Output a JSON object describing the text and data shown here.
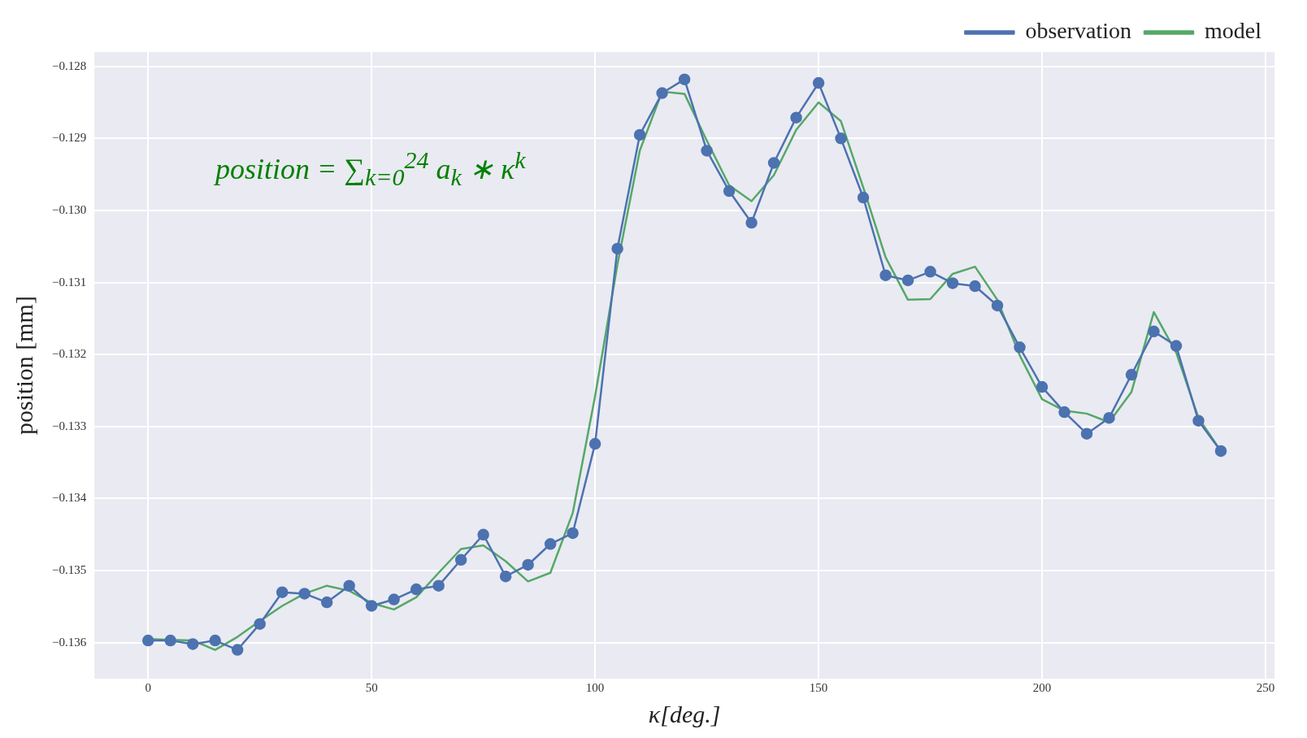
{
  "chart_data": {
    "type": "line",
    "xlabel": "κ[deg.]",
    "ylabel": "position [mm]",
    "annotations": [
      "position = ∑$_{k=0}$$^{24}$ a$_{k}$ ∗ κ$^{k}$"
    ],
    "x": [
      0,
      5,
      10,
      15,
      20,
      25,
      30,
      35,
      40,
      45,
      50,
      55,
      60,
      65,
      70,
      75,
      80,
      85,
      90,
      95,
      100,
      105,
      110,
      115,
      120,
      125,
      130,
      135,
      140,
      145,
      150,
      155,
      160,
      165,
      170,
      175,
      180,
      185,
      190,
      195,
      200,
      205,
      210,
      215,
      220,
      225,
      230,
      235,
      240
    ],
    "series": [
      {
        "name": "observation",
        "color": "#4c72b0",
        "marker": "circle",
        "values": [
          -0.13597,
          -0.13597,
          -0.13602,
          -0.13597,
          -0.1361,
          -0.13574,
          -0.1353,
          -0.13532,
          -0.13544,
          -0.13521,
          -0.13549,
          -0.1354,
          -0.13526,
          -0.13521,
          -0.13485,
          -0.1345,
          -0.13508,
          -0.13492,
          -0.13463,
          -0.13448,
          -0.13324,
          -0.13053,
          -0.12895,
          -0.12837,
          -0.12818,
          -0.12917,
          -0.12973,
          -0.13017,
          -0.12934,
          -0.12871,
          -0.12823,
          -0.129,
          -0.12982,
          -0.1309,
          -0.13097,
          -0.13085,
          -0.13101,
          -0.13105,
          -0.13132,
          -0.1319,
          -0.13245,
          -0.1328,
          -0.1331,
          -0.13288,
          -0.13228,
          -0.13168,
          -0.13188,
          -0.13292,
          -0.13334
        ]
      },
      {
        "name": "model",
        "color": "#55a868",
        "marker": "none",
        "values": [
          -0.13595,
          -0.13596,
          -0.13597,
          -0.1361,
          -0.13592,
          -0.1357,
          -0.13549,
          -0.13532,
          -0.13521,
          -0.13528,
          -0.13545,
          -0.13554,
          -0.13537,
          -0.13503,
          -0.1347,
          -0.13465,
          -0.13487,
          -0.13515,
          -0.13503,
          -0.1342,
          -0.13258,
          -0.13075,
          -0.12917,
          -0.12835,
          -0.12838,
          -0.12903,
          -0.12965,
          -0.12987,
          -0.12951,
          -0.12888,
          -0.1285,
          -0.12876,
          -0.12968,
          -0.13065,
          -0.13124,
          -0.13123,
          -0.13088,
          -0.13078,
          -0.13124,
          -0.13201,
          -0.13262,
          -0.13278,
          -0.13282,
          -0.13294,
          -0.13252,
          -0.13141,
          -0.13197,
          -0.13288,
          -0.13334
        ]
      }
    ],
    "xlim": [
      -12,
      252
    ],
    "xticks": [
      0,
      50,
      100,
      150,
      200,
      250
    ],
    "ylim": [
      -0.1365,
      -0.1278
    ],
    "yticks": [
      {
        "value": -0.136,
        "label": "−0.136"
      },
      {
        "value": -0.135,
        "label": "−0.135"
      },
      {
        "value": -0.134,
        "label": "−0.134"
      },
      {
        "value": -0.133,
        "label": "−0.133"
      },
      {
        "value": -0.132,
        "label": "−0.132"
      },
      {
        "value": -0.131,
        "label": "−0.131"
      },
      {
        "value": -0.13,
        "label": "−0.130"
      },
      {
        "value": -0.129,
        "label": "−0.129"
      },
      {
        "value": -0.128,
        "label": "−0.128"
      }
    ],
    "grid": true,
    "legend": "top right"
  }
}
